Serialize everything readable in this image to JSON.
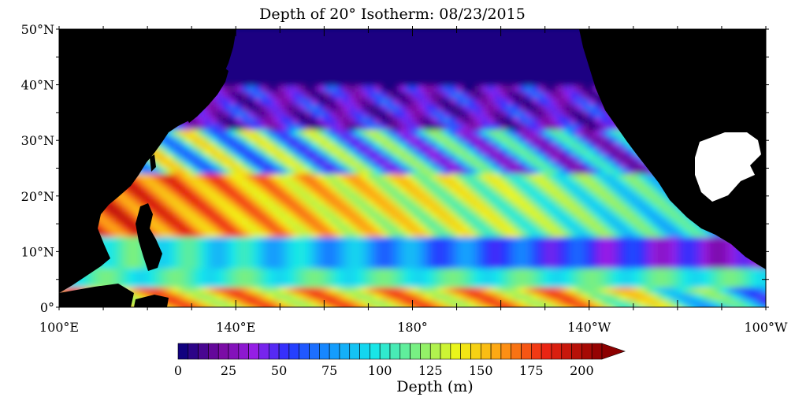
{
  "title": "Depth of 20° Isotherm: 08/23/2015",
  "map": {
    "lon_range": [
      100,
      260
    ],
    "lat_range": [
      0,
      50
    ],
    "lat_ticks": [
      {
        "value": 50,
        "label": "50°N"
      },
      {
        "value": 40,
        "label": "40°N"
      },
      {
        "value": 30,
        "label": "30°N"
      },
      {
        "value": 20,
        "label": "20°N"
      },
      {
        "value": 10,
        "label": "10°N"
      },
      {
        "value": 0,
        "label": "0°"
      }
    ],
    "lon_ticks": [
      {
        "value": 100,
        "label": "100°E"
      },
      {
        "value": 140,
        "label": "140°E"
      },
      {
        "value": 180,
        "label": "180°"
      },
      {
        "value": 220,
        "label": "140°W"
      },
      {
        "value": 260,
        "label": "100°W"
      }
    ],
    "land_color": "#000000",
    "no_data_color": "#ffffff"
  },
  "colorbar": {
    "label": "Depth (m)",
    "min": 0,
    "max": 210,
    "step": 5,
    "ticks": [
      {
        "value": 0,
        "label": "0"
      },
      {
        "value": 25,
        "label": "25"
      },
      {
        "value": 50,
        "label": "50"
      },
      {
        "value": 75,
        "label": "75"
      },
      {
        "value": 100,
        "label": "100"
      },
      {
        "value": 125,
        "label": "125"
      },
      {
        "value": 150,
        "label": "150"
      },
      {
        "value": 175,
        "label": "175"
      },
      {
        "value": 200,
        "label": "200"
      }
    ]
  }
}
